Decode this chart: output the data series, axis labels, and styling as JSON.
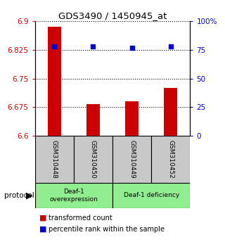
{
  "title": "GDS3490 / 1450945_at",
  "samples": [
    "GSM310448",
    "GSM310450",
    "GSM310449",
    "GSM310452"
  ],
  "bar_values": [
    6.885,
    6.682,
    6.69,
    6.725
  ],
  "percentile_values": [
    78,
    78,
    77,
    78
  ],
  "ylim_left": [
    6.6,
    6.9
  ],
  "ylim_right": [
    0,
    100
  ],
  "yticks_left": [
    6.6,
    6.675,
    6.75,
    6.825,
    6.9
  ],
  "yticks_right": [
    0,
    25,
    50,
    75,
    100
  ],
  "ytick_labels_left": [
    "6.6",
    "6.675",
    "6.75",
    "6.825",
    "6.9"
  ],
  "ytick_labels_right": [
    "0",
    "25",
    "50",
    "75",
    "100%"
  ],
  "bar_color": "#cc0000",
  "dot_color": "#0000cc",
  "bar_width": 0.35,
  "group1_label": "Deaf-1\noverexpression",
  "group2_label": "Deaf-1 deficiency",
  "group_color": "#90ee90",
  "sample_box_color": "#c8c8c8",
  "protocol_label": "protocol",
  "legend_bar_label": "transformed count",
  "legend_dot_label": "percentile rank within the sample"
}
